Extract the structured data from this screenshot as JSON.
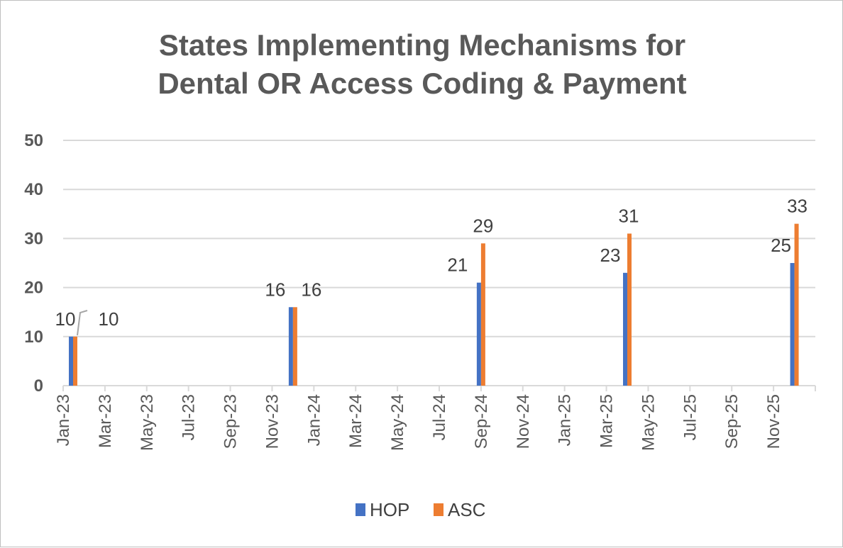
{
  "chart_data": {
    "type": "bar",
    "title_lines": [
      "States Implementing Mechanisms for",
      "Dental OR Access Coding & Payment"
    ],
    "xlabel": "",
    "ylabel": "",
    "ylim": [
      0,
      50
    ],
    "y_ticks": [
      0,
      10,
      20,
      30,
      40,
      50
    ],
    "x_tick_labels": [
      "Jan-23",
      "Mar-23",
      "May-23",
      "Jul-23",
      "Sep-23",
      "Nov-23",
      "Jan-24",
      "Mar-24",
      "May-24",
      "Jul-24",
      "Sep-24",
      "Nov-24",
      "Jan-25",
      "Mar-25",
      "May-25",
      "Jul-25",
      "Sep-25",
      "Nov-25"
    ],
    "x_axis": "date",
    "grid": true,
    "legend_position": "bottom",
    "points": [
      {
        "date": "2023-01",
        "HOP": 10,
        "ASC": 10
      },
      {
        "date": "2023-12",
        "HOP": 16,
        "ASC": 16
      },
      {
        "date": "2024-09",
        "HOP": 21,
        "ASC": 29
      },
      {
        "date": "2025-04",
        "HOP": 23,
        "ASC": 31
      },
      {
        "date": "2025-12",
        "HOP": 25,
        "ASC": 33
      }
    ],
    "series": [
      {
        "name": "HOP",
        "color": "#4472c4"
      },
      {
        "name": "ASC",
        "color": "#ed7d31"
      }
    ]
  }
}
